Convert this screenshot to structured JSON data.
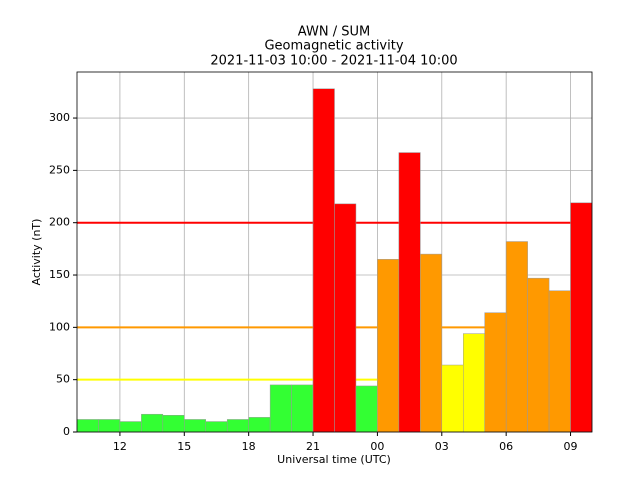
{
  "chart_data": {
    "type": "histogram",
    "title": [
      "AWN / SUM",
      "Geomagnetic activity",
      "2021-11-03 10:00 - 2021-11-04 10:00"
    ],
    "x_label": "Universal time (UTC)",
    "y_label": "Activity (nT)",
    "bins": [
      10,
      11,
      12,
      13,
      14,
      15,
      16,
      17,
      18,
      19,
      20,
      21,
      22,
      23,
      24,
      25,
      26,
      27,
      28,
      29,
      30,
      31,
      32,
      33,
      34
    ],
    "values": [
      12,
      12,
      10,
      17,
      16,
      12,
      10,
      12,
      14,
      45,
      45,
      328,
      218,
      44,
      165,
      267,
      170,
      64,
      94,
      114,
      182,
      147,
      135,
      219
    ],
    "colors": [
      "#33ff33",
      "#33ff33",
      "#33ff33",
      "#33ff33",
      "#33ff33",
      "#33ff33",
      "#33ff33",
      "#33ff33",
      "#33ff33",
      "#33ff33",
      "#33ff33",
      "#ff0000",
      "#ff0000",
      "#33ff33",
      "#ff9900",
      "#ff0000",
      "#ff9900",
      "#ffff00",
      "#ffff00",
      "#ff9900",
      "#ff9900",
      "#ff9900",
      "#ff9900",
      "#ff0000"
    ],
    "thresholds": [
      {
        "value": 50,
        "color": "#ffff00"
      },
      {
        "value": 100,
        "color": "#ff9900"
      },
      {
        "value": 200,
        "color": "#ff0000"
      }
    ],
    "xlim": [
      10,
      34
    ],
    "ylim": [
      0,
      344
    ],
    "xticks": [
      12,
      15,
      18,
      21,
      {
        "value": 24,
        "label": "00"
      },
      {
        "value": 27,
        "label": "03"
      },
      {
        "value": 30,
        "label": "06"
      },
      {
        "value": 33,
        "label": "09"
      }
    ],
    "yticks": [
      0,
      50,
      100,
      150,
      200,
      250,
      300
    ],
    "grid": true
  }
}
